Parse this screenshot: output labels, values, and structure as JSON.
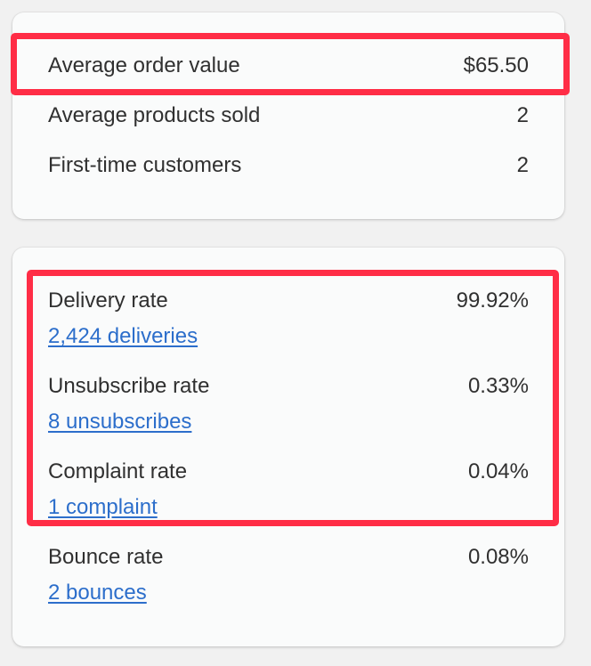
{
  "sales_card": {
    "rows": [
      {
        "label": "Average order value",
        "value": "$65.50"
      },
      {
        "label": "Average products sold",
        "value": "2"
      },
      {
        "label": "First-time customers",
        "value": "2"
      }
    ]
  },
  "email_card": {
    "metrics": [
      {
        "label": "Delivery rate",
        "value": "99.92%",
        "link": "2,424 deliveries"
      },
      {
        "label": "Unsubscribe rate",
        "value": "0.33%",
        "link": "8 unsubscribes"
      },
      {
        "label": "Complaint rate",
        "value": "0.04%",
        "link": "1 complaint"
      },
      {
        "label": "Bounce rate",
        "value": "0.08%",
        "link": "2 bounces"
      }
    ]
  },
  "colors": {
    "highlight": "#ff2d46",
    "link": "#2c6ecb",
    "card_background": "#fafbfb",
    "page_background": "#f1f1f1"
  }
}
